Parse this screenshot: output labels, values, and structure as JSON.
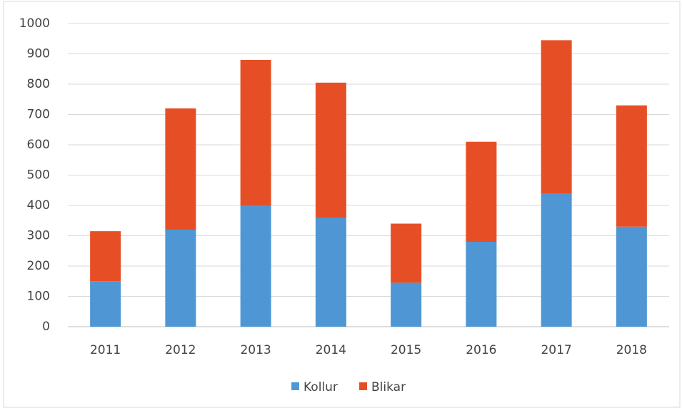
{
  "chart_data": {
    "type": "stacked_bar",
    "categories": [
      "2011",
      "2012",
      "2013",
      "2014",
      "2015",
      "2016",
      "2017",
      "2018"
    ],
    "series": [
      {
        "name": "Kollur",
        "color": "#4e97d4",
        "values": [
          150,
          320,
          400,
          360,
          145,
          280,
          440,
          330
        ]
      },
      {
        "name": "Blikar",
        "color": "#e64f26",
        "values": [
          165,
          400,
          480,
          445,
          195,
          330,
          505,
          400
        ]
      }
    ],
    "ylim": [
      0,
      1000
    ],
    "yticks": [
      0,
      100,
      200,
      300,
      400,
      500,
      600,
      700,
      800,
      900,
      1000
    ],
    "grid": true,
    "legend": "bottom"
  }
}
